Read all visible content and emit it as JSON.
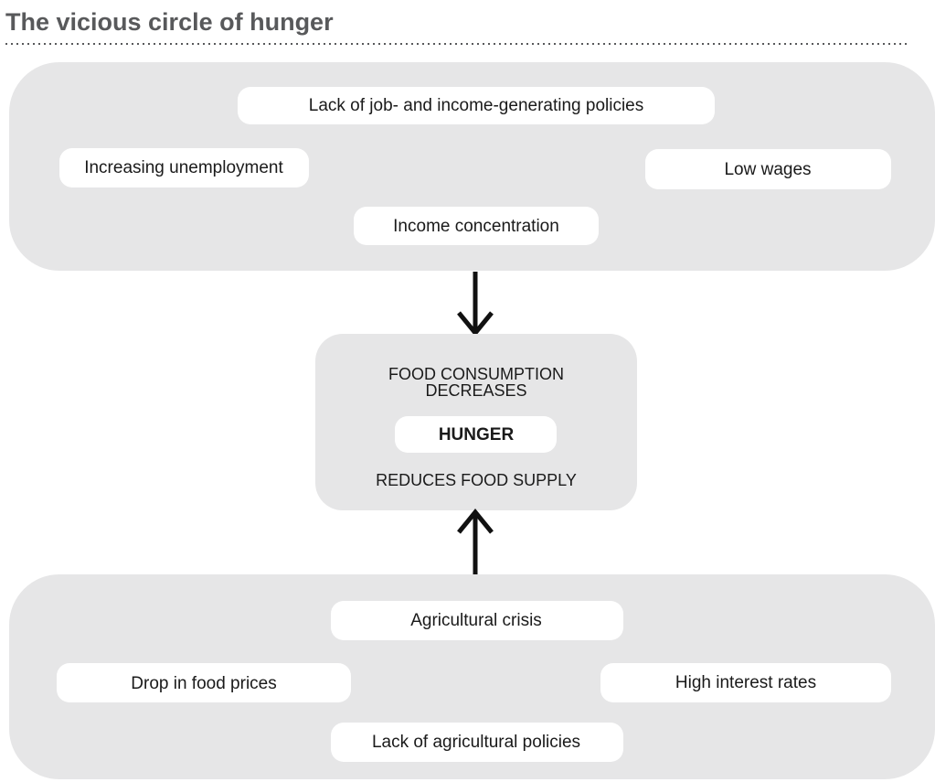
{
  "title": "The vicious circle of hunger",
  "top_group": {
    "items": [
      "Lack of job- and income-generating policies",
      "Increasing unemployment",
      "Low wages",
      "Income concentration"
    ]
  },
  "center": {
    "top_text": [
      "FOOD CONSUMPTION",
      "DECREASES"
    ],
    "label": "HUNGER",
    "bottom_text": "REDUCES FOOD SUPPLY"
  },
  "bottom_group": {
    "items": [
      "Agricultural crisis",
      "Drop in food prices",
      "High interest rates",
      "Lack of agricultural policies"
    ]
  }
}
